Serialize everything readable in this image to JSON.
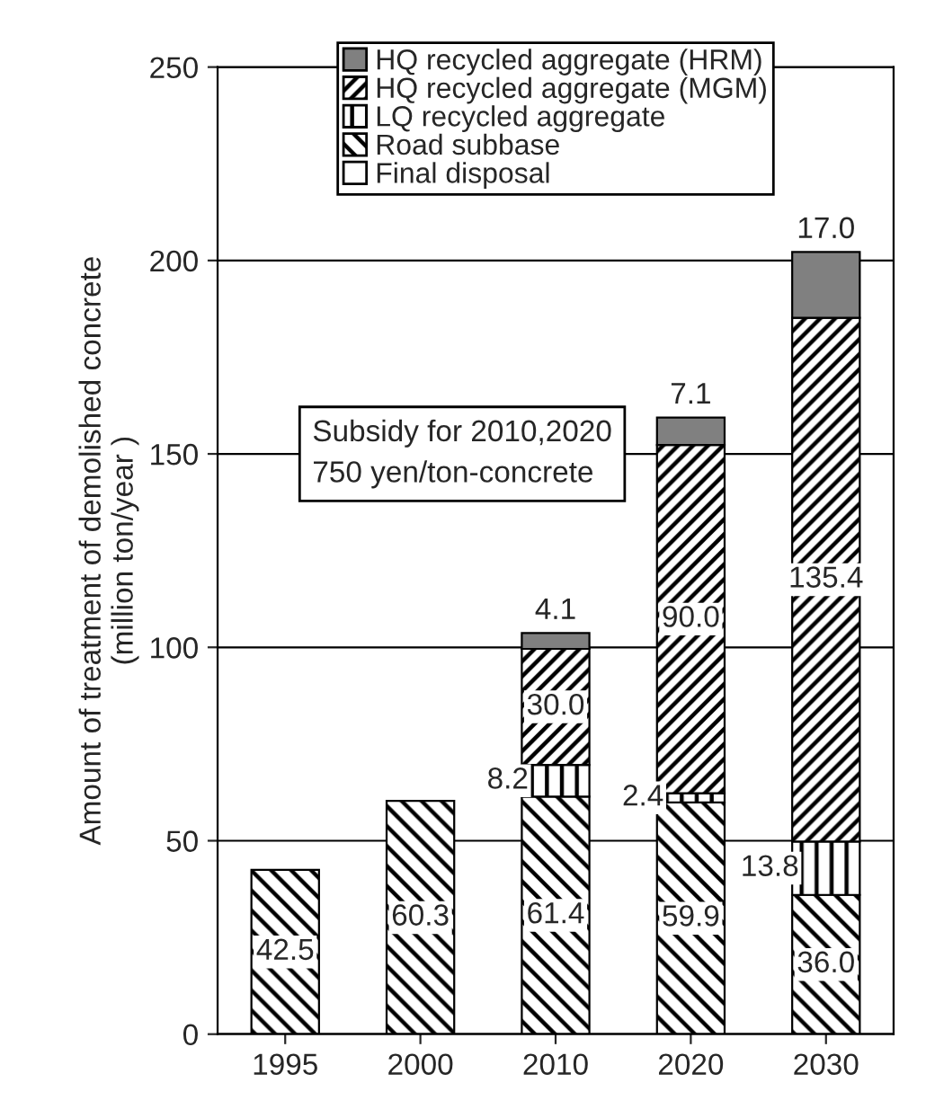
{
  "chart_data": {
    "type": "bar",
    "stacked": true,
    "ylabel": "Amount of treatment of demolished concrete\n(million ton/year )",
    "categories": [
      "1995",
      "2000",
      "2010",
      "2020",
      "2030"
    ],
    "series": [
      {
        "name": "Final disposal",
        "color": "#000000",
        "values": [
          null,
          null,
          null,
          null,
          null
        ],
        "value_labels": [
          null,
          null,
          null,
          null,
          null
        ]
      },
      {
        "name": "Road subbase",
        "color": "#000000",
        "values": [
          42.5,
          60.3,
          61.4,
          59.9,
          36.0
        ],
        "value_labels": [
          "42.5",
          "60.3",
          "61.4",
          "59.9",
          "36.0"
        ]
      },
      {
        "name": "LQ recycled aggregate",
        "color": "#000000",
        "values": [
          null,
          null,
          8.2,
          2.4,
          13.8
        ],
        "value_labels": [
          null,
          null,
          "8.2",
          "2.4",
          "13.8"
        ]
      },
      {
        "name": "HQ recycled aggregate (MGM)",
        "color": "#000000",
        "values": [
          null,
          null,
          30.0,
          90.0,
          135.4
        ],
        "value_labels": [
          null,
          null,
          "30.0",
          "90.0",
          "135.4"
        ]
      },
      {
        "name": "HQ recycled aggregate (HRM)",
        "color": "#808080",
        "values": [
          null,
          null,
          4.1,
          7.1,
          17.0
        ],
        "value_labels": [
          null,
          null,
          "4.1",
          "7.1",
          "17.0"
        ]
      }
    ],
    "ylim": [
      0,
      250
    ],
    "yticks": [
      0,
      50,
      100,
      150,
      200,
      250
    ],
    "grid": "y",
    "legend": "top",
    "annotations": [
      "Subsidy for 2010,2020\n750 yen/ton-concrete"
    ]
  }
}
